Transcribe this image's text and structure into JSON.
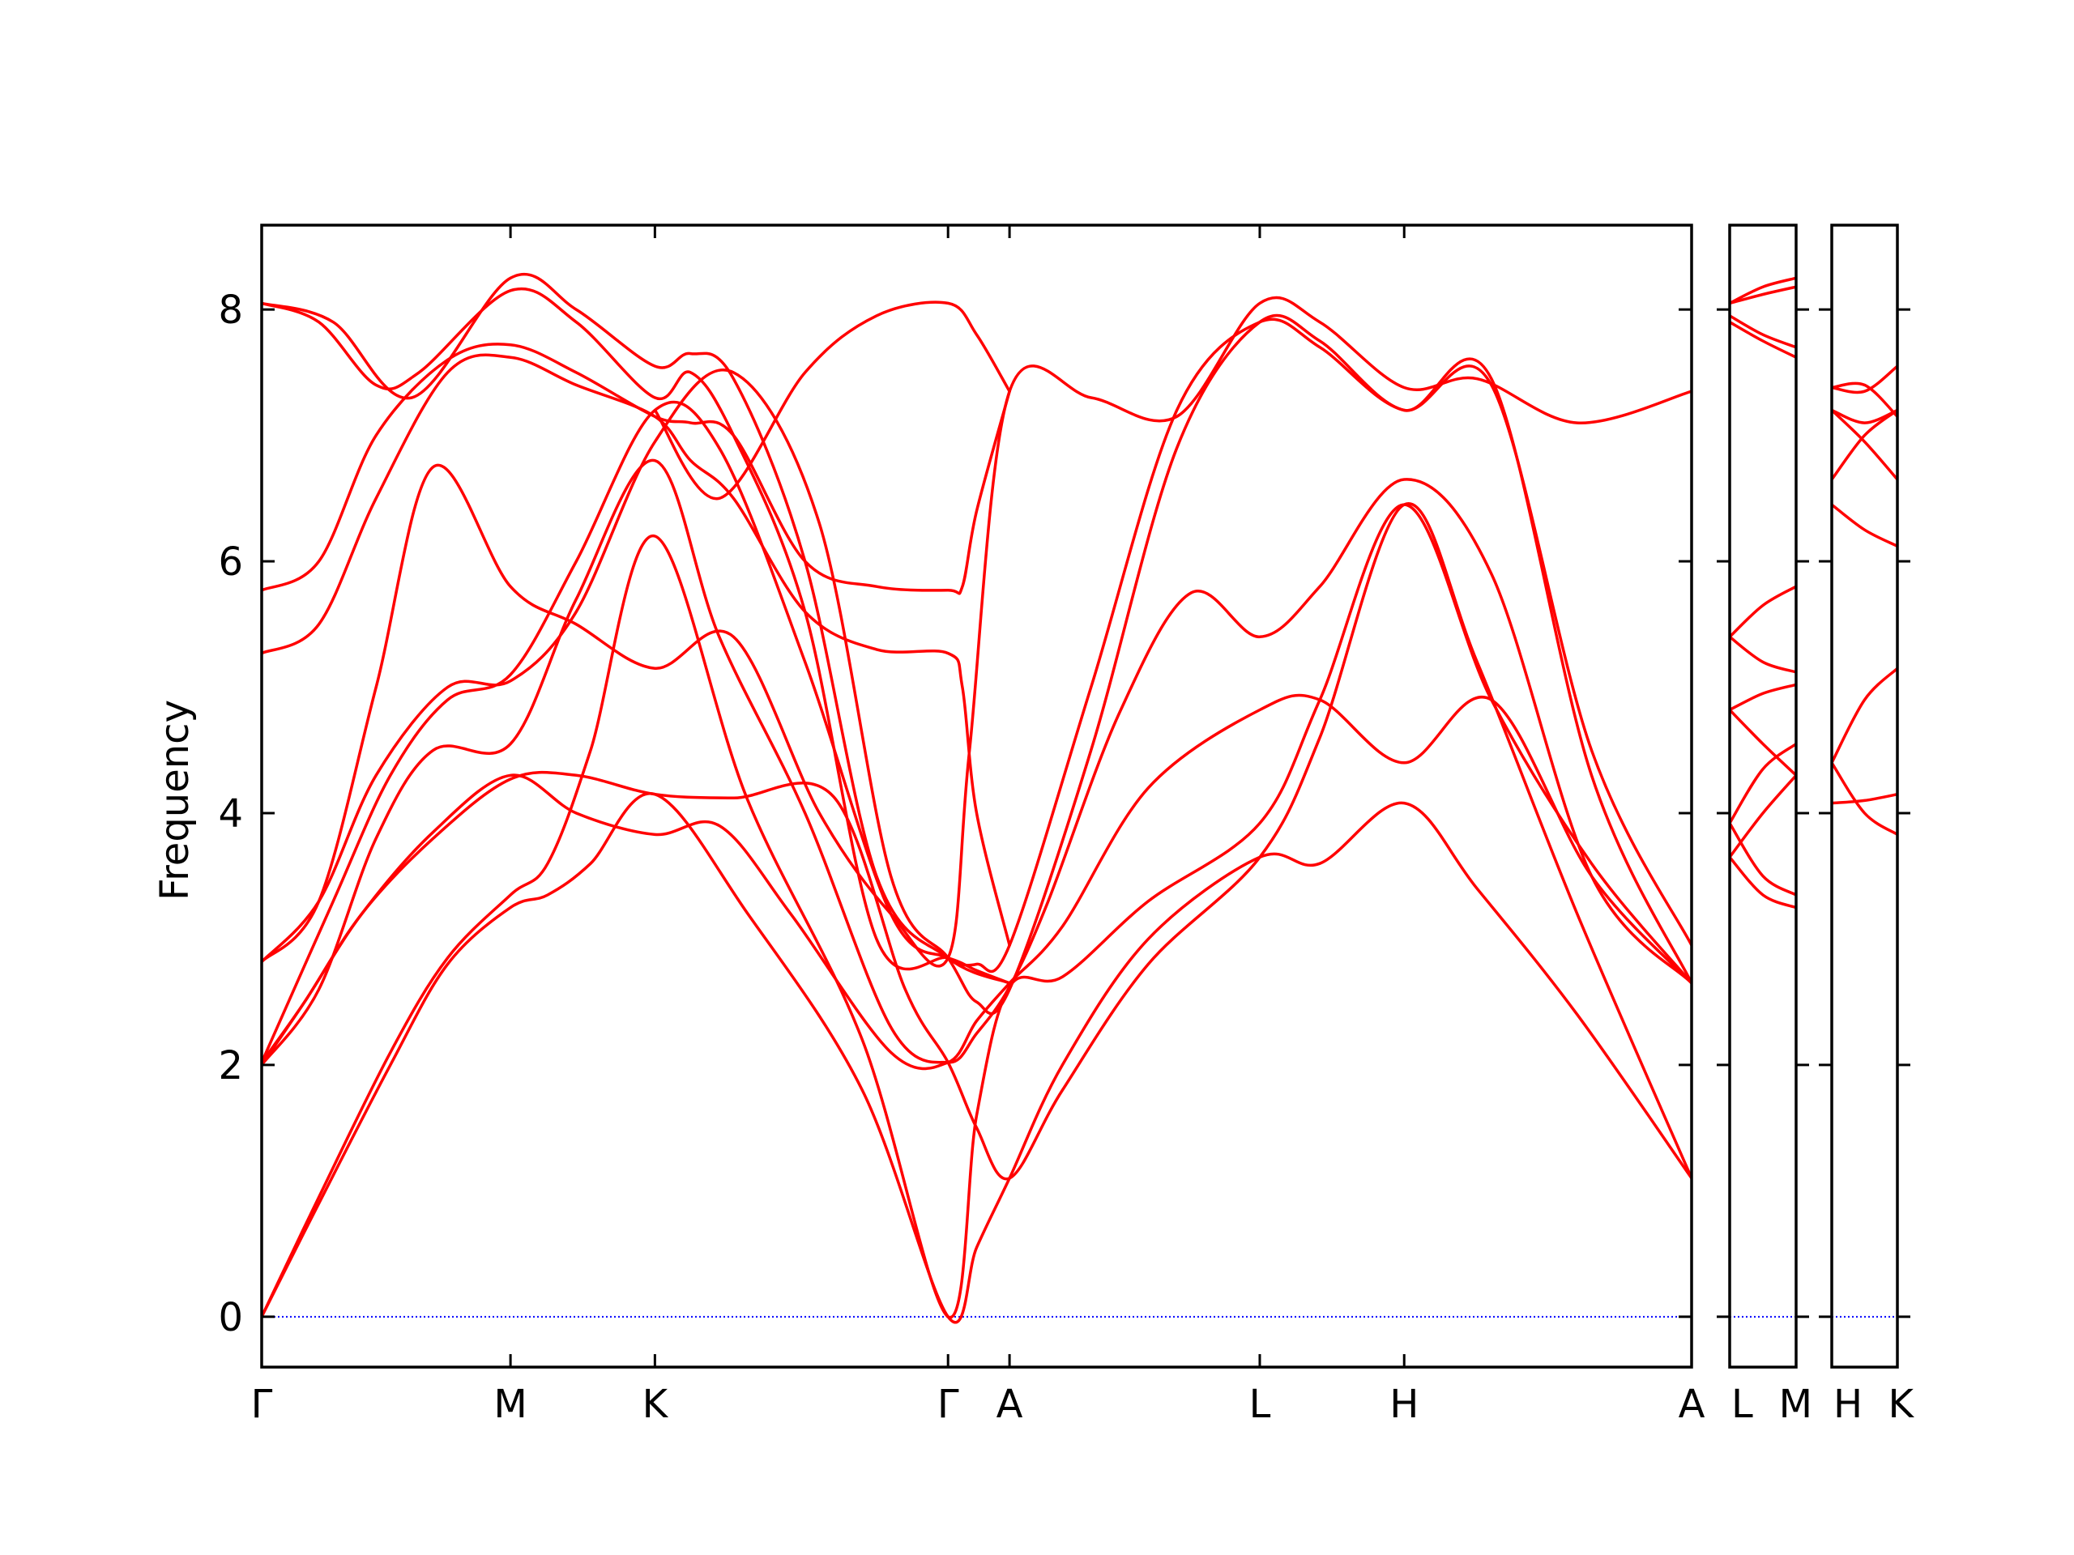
{
  "chart_data": {
    "type": "line",
    "title": "",
    "ylabel": "Frequency",
    "ylim": [
      -0.4,
      8.67
    ],
    "yticks": [
      {
        "value": 0,
        "label": "0"
      },
      {
        "value": 2,
        "label": "2"
      },
      {
        "value": 4,
        "label": "4"
      },
      {
        "value": 6,
        "label": "6"
      },
      {
        "value": 8,
        "label": "8"
      }
    ],
    "zero_line_color": "#0000ff",
    "band_color": "#ff0000",
    "panels": [
      {
        "x_range": [
          0,
          10.0
        ],
        "kpoints": [
          {
            "label": "Γ",
            "x": 0.0
          },
          {
            "label": "M",
            "x": 1.74
          },
          {
            "label": "K",
            "x": 2.75
          },
          {
            "label": "Γ",
            "x": 4.8
          },
          {
            "label": "A",
            "x": 5.23
          },
          {
            "label": "L",
            "x": 6.98
          },
          {
            "label": "H",
            "x": 7.99
          },
          {
            "label": "A",
            "x": 10.0
          }
        ],
        "bands": [
          {
            "x": [
              0,
              0.4,
              0.9,
              1.3,
              1.74,
              2.0,
              2.3,
              2.75,
              3.4,
              4.2,
              4.8,
              5.0,
              5.23,
              5.6,
              6.2,
              6.98,
              7.4,
              7.99,
              8.5,
              9.2,
              10.0
            ],
            "y": [
              0,
              0.9,
              2.0,
              2.8,
              3.25,
              3.35,
              3.6,
              4.15,
              3.2,
              1.8,
              0.0,
              0.55,
              1.1,
              2.0,
              3.0,
              3.65,
              3.6,
              4.08,
              3.4,
              2.4,
              1.1
            ]
          },
          {
            "x": [
              0,
              0.4,
              0.9,
              1.3,
              1.74,
              2.0,
              2.3,
              2.75,
              3.4,
              4.2,
              4.8,
              5.0,
              5.23,
              5.6,
              6.2,
              6.98,
              7.4,
              7.99,
              8.6,
              9.3,
              10.0
            ],
            "y": [
              0,
              0.95,
              2.1,
              2.85,
              3.35,
              3.6,
              4.5,
              6.2,
              4.1,
              2.2,
              0.0,
              1.6,
              2.62,
              2.7,
              3.3,
              3.92,
              4.9,
              6.45,
              4.9,
              3.6,
              2.65
            ]
          },
          {
            "x": [
              0,
              0.3,
              0.7,
              1.2,
              1.74,
              2.2,
              2.75,
              3.3,
              4.0,
              4.5,
              4.8,
              5.0,
              5.23,
              5.6,
              6.2,
              6.98,
              7.4,
              7.99,
              8.5,
              9.2,
              10.0
            ],
            "y": [
              2.0,
              2.5,
              3.2,
              3.8,
              4.27,
              4.3,
              4.15,
              4.12,
              4.13,
              2.6,
              2.02,
              1.5,
              1.1,
              1.8,
              2.8,
              3.65,
              4.6,
              6.45,
              5.2,
              3.2,
              1.1
            ]
          },
          {
            "x": [
              0,
              0.3,
              0.7,
              1.2,
              1.74,
              2.2,
              2.75,
              3.2,
              3.7,
              4.4,
              4.8,
              5.0,
              5.23,
              5.6,
              6.2,
              6.98,
              7.4,
              7.99,
              8.6,
              9.3,
              10.0
            ],
            "y": [
              2.02,
              2.5,
              3.2,
              3.85,
              4.3,
              4.0,
              3.83,
              3.9,
              3.2,
              2.1,
              2.02,
              2.35,
              2.65,
              3.1,
              4.2,
              4.82,
              4.9,
              4.4,
              4.9,
              3.5,
              2.65
            ]
          },
          {
            "x": [
              0,
              0.4,
              0.8,
              1.2,
              1.74,
              2.2,
              2.75,
              3.2,
              3.8,
              4.4,
              4.8,
              5.0,
              5.23,
              5.5,
              6.0,
              6.5,
              6.98,
              7.4,
              7.99,
              8.6,
              9.3,
              10.0
            ],
            "y": [
              2.0,
              2.6,
              3.8,
              4.5,
              4.55,
              5.7,
              6.8,
              5.4,
              4.0,
              2.3,
              2.02,
              2.25,
              2.62,
              3.3,
              4.8,
              5.75,
              5.4,
              5.8,
              6.65,
              5.9,
              3.5,
              2.65
            ]
          },
          {
            "x": [
              0,
              0.5,
              0.9,
              1.3,
              1.74,
              2.2,
              2.75,
              3.2,
              3.8,
              4.4,
              4.8,
              5.0,
              5.23,
              5.8,
              6.4,
              6.98,
              7.4,
              7.99,
              8.6,
              9.3,
              10.0
            ],
            "y": [
              2.02,
              3.3,
              4.3,
              4.9,
              5.1,
              6.0,
              7.2,
              6.9,
              5.2,
              3.2,
              2.85,
              2.8,
              2.95,
              5.0,
              7.2,
              7.9,
              7.7,
              7.2,
              7.4,
              4.5,
              2.95
            ]
          },
          {
            "x": [
              0,
              0.4,
              0.8,
              1.3,
              1.74,
              2.2,
              2.75,
              3.3,
              3.9,
              4.4,
              4.8,
              5.0,
              5.23,
              5.8,
              6.4,
              6.98,
              7.4,
              7.99,
              8.6,
              9.3,
              10.0
            ],
            "y": [
              2.82,
              3.3,
              4.3,
              5.0,
              5.05,
              5.6,
              6.95,
              7.5,
              6.3,
              3.5,
              2.85,
              2.5,
              2.6,
              4.5,
              6.9,
              7.9,
              7.75,
              7.2,
              7.45,
              4.3,
              2.65
            ]
          },
          {
            "x": [
              0,
              0.4,
              0.8,
              1.2,
              1.74,
              2.2,
              2.75,
              3.3,
              3.9,
              4.4,
              4.8,
              4.95,
              5.23,
              5.8,
              6.4,
              6.98,
              7.4,
              7.99,
              8.5,
              9.2,
              10.0
            ],
            "y": [
              2.82,
              3.3,
              5.0,
              6.75,
              5.8,
              5.5,
              5.15,
              5.4,
              4.0,
              3.2,
              2.85,
              4.5,
              7.35,
              7.3,
              7.15,
              8.05,
              7.9,
              7.38,
              7.45,
              7.1,
              7.35
            ]
          },
          {
            "x": [
              0,
              0.4,
              0.8,
              1.3,
              1.74,
              2.2,
              2.75,
              3.0,
              3.3,
              3.8,
              4.3,
              4.8,
              4.9,
              5.0,
              5.23
            ],
            "y": [
              5.27,
              5.5,
              6.5,
              7.5,
              7.62,
              7.4,
              7.15,
              6.8,
              6.5,
              5.6,
              5.3,
              5.27,
              5.0,
              4.0,
              2.95
            ]
          },
          {
            "x": [
              0,
              0.4,
              0.8,
              1.3,
              1.74,
              2.2,
              2.75,
              3.0,
              3.3,
              3.8,
              4.3,
              4.8,
              4.9,
              5.0,
              5.23
            ],
            "y": [
              5.77,
              6.0,
              7.0,
              7.6,
              7.72,
              7.5,
              7.15,
              7.1,
              7.0,
              6.0,
              5.8,
              5.77,
              5.8,
              6.4,
              7.35
            ]
          },
          {
            "x": [
              0,
              0.4,
              0.8,
              1.1,
              1.74,
              2.2,
              2.75,
              3.0,
              3.3,
              3.8,
              4.3,
              4.8,
              5.0,
              5.23
            ],
            "y": [
              8.05,
              7.9,
              7.4,
              7.5,
              8.15,
              7.9,
              7.3,
              7.5,
              7.0,
              5.6,
              3.0,
              2.85,
              2.75,
              2.65
            ]
          },
          {
            "x": [
              0,
              0.5,
              1.05,
              1.74,
              2.2,
              2.75,
              3.0,
              3.3,
              3.8,
              4.3,
              4.8,
              5.23
            ],
            "y": [
              8.05,
              7.9,
              7.3,
              8.25,
              8.0,
              7.55,
              7.65,
              7.45,
              6.0,
              3.5,
              2.85,
              2.65
            ]
          },
          {
            "x": [
              2.75,
              3.2,
              3.8,
              4.3,
              4.8,
              5.0,
              5.23
            ],
            "y": [
              7.2,
              6.5,
              7.5,
              7.95,
              8.05,
              7.8,
              7.35
            ]
          }
        ]
      },
      {
        "x_range": [
          0,
          1.0
        ],
        "kpoints": [
          {
            "label": "L",
            "x": 0.0
          },
          {
            "label": "M",
            "x": 1.0
          }
        ],
        "bands": [
          {
            "x": [
              0,
              0.5,
              1.0
            ],
            "y": [
              8.05,
              8.18,
              8.25
            ]
          },
          {
            "x": [
              0,
              0.5,
              1.0
            ],
            "y": [
              8.05,
              8.12,
              8.18
            ]
          },
          {
            "x": [
              0,
              0.5,
              1.0
            ],
            "y": [
              7.95,
              7.8,
              7.7
            ]
          },
          {
            "x": [
              0,
              0.5,
              1.0
            ],
            "y": [
              7.9,
              7.75,
              7.62
            ]
          },
          {
            "x": [
              0,
              0.5,
              1.0
            ],
            "y": [
              5.4,
              5.65,
              5.8
            ]
          },
          {
            "x": [
              0,
              0.5,
              1.0
            ],
            "y": [
              5.4,
              5.2,
              5.12
            ]
          },
          {
            "x": [
              0,
              0.5,
              1.0
            ],
            "y": [
              4.82,
              4.95,
              5.02
            ]
          },
          {
            "x": [
              0,
              0.5,
              1.0
            ],
            "y": [
              4.82,
              4.55,
              4.3
            ]
          },
          {
            "x": [
              0,
              0.5,
              1.0
            ],
            "y": [
              3.92,
              4.35,
              4.55
            ]
          },
          {
            "x": [
              0,
              0.5,
              1.0
            ],
            "y": [
              3.92,
              3.5,
              3.35
            ]
          },
          {
            "x": [
              0,
              0.5,
              1.0
            ],
            "y": [
              3.65,
              4.0,
              4.3
            ]
          },
          {
            "x": [
              0,
              0.5,
              1.0
            ],
            "y": [
              3.65,
              3.35,
              3.25
            ]
          }
        ]
      },
      {
        "x_range": [
          0,
          1.0
        ],
        "kpoints": [
          {
            "label": "H",
            "x": 0.0
          },
          {
            "label": "K",
            "x": 1.0
          }
        ],
        "bands": [
          {
            "x": [
              0,
              0.5,
              1.0
            ],
            "y": [
              7.38,
              7.35,
              7.55
            ]
          },
          {
            "x": [
              0,
              0.5,
              1.0
            ],
            "y": [
              7.38,
              7.4,
              7.15
            ]
          },
          {
            "x": [
              0,
              0.5,
              1.0
            ],
            "y": [
              7.2,
              7.1,
              7.2
            ]
          },
          {
            "x": [
              0,
              0.5,
              1.0
            ],
            "y": [
              7.2,
              6.95,
              6.65
            ]
          },
          {
            "x": [
              0,
              0.5,
              1.0
            ],
            "y": [
              6.65,
              7.0,
              7.2
            ]
          },
          {
            "x": [
              0,
              0.5,
              1.0
            ],
            "y": [
              6.45,
              6.25,
              6.12
            ]
          },
          {
            "x": [
              0,
              0.5,
              1.0
            ],
            "y": [
              4.4,
              4.9,
              5.15
            ]
          },
          {
            "x": [
              0,
              0.5,
              1.0
            ],
            "y": [
              4.4,
              4.0,
              3.83
            ]
          },
          {
            "x": [
              0,
              0.5,
              1.0
            ],
            "y": [
              4.08,
              4.1,
              4.15
            ]
          }
        ]
      }
    ]
  }
}
